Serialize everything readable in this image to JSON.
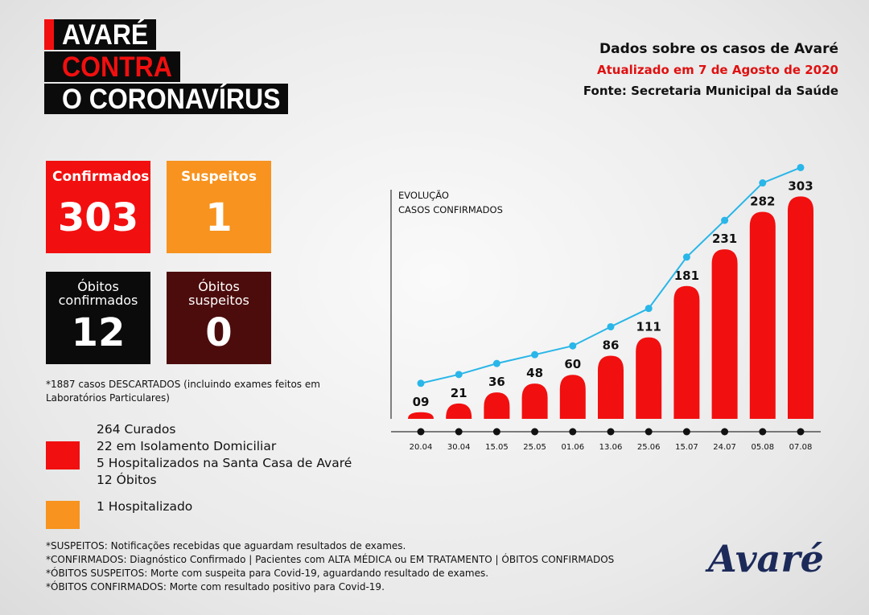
{
  "header": {
    "title_lines": [
      "AVARÉ",
      "CONTRA",
      "O CORONAVÍRUS"
    ],
    "info": [
      "Dados sobre os casos de Avaré",
      "Atualizado em 7 de Agosto de 2020",
      "Fonte: Secretaria Municipal da Saúde"
    ]
  },
  "stats": [
    {
      "label": "Confirmados",
      "value": 303,
      "color": "#f20f0f"
    },
    {
      "label": "Suspeitos",
      "value": 1,
      "color": "#f7931e"
    },
    {
      "label": "Óbitos confirmados",
      "value": 12,
      "color": "#0b0b0b"
    },
    {
      "label": "Óbitos suspeitos",
      "value": 0,
      "color": "#4d0c0c"
    }
  ],
  "discarded_note": "*1887 casos DESCARTADOS (incluindo exames feitos em Laboratórios Particulares)",
  "legend": [
    {
      "color": "#f20f0f",
      "lines": [
        "264 Curados",
        "22 em Isolamento Domiciliar",
        "5 Hospitalizados na Santa Casa de Avaré",
        "12 Óbitos"
      ]
    },
    {
      "color": "#f7931e",
      "lines": [
        "1 Hospitalizado"
      ]
    }
  ],
  "footnotes": [
    "*SUSPEITOS: Notificações recebidas que aguardam resultados de exames.",
    "*CONFIRMADOS: Diagnóstico Confirmado | Pacientes com ALTA MÉDICA ou EM TRATAMENTO | ÓBITOS CONFIRMADOS",
    "*ÓBITOS SUSPEITOS: Morte com suspeita para Covid-19, aguardando resultado de exames.",
    "*ÓBITOS CONFIRMADOS: Morte com resultado positivo para Covid-19."
  ],
  "logo": "Avaré",
  "chart_data": {
    "type": "bar",
    "title": [
      "EVOLUÇÃO",
      "CASOS CONFIRMADOS"
    ],
    "categories": [
      "20.04",
      "30.04",
      "15.05",
      "25.05",
      "01.06",
      "13.06",
      "25.06",
      "15.07",
      "24.07",
      "05.08",
      "07.08"
    ],
    "values": [
      9,
      21,
      36,
      48,
      60,
      86,
      111,
      181,
      231,
      282,
      303
    ],
    "value_labels": [
      "09",
      "21",
      "36",
      "48",
      "60",
      "86",
      "111",
      "181",
      "231",
      "282",
      "303"
    ],
    "color": "#f20f0f",
    "line_color": "#29b6e8",
    "ylim": [
      0,
      310
    ]
  }
}
